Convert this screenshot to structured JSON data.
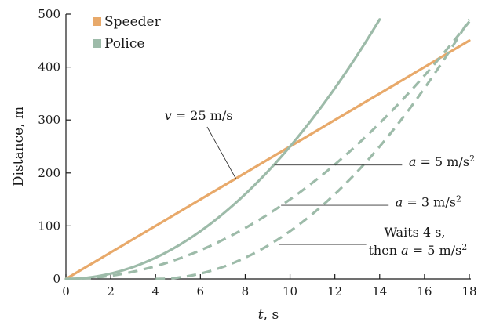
{
  "chart_data": {
    "type": "line",
    "xlabel": "t, s",
    "ylabel": "Distance, m",
    "xlim": [
      0,
      18
    ],
    "ylim": [
      0,
      500
    ],
    "x_ticks": [
      0,
      2,
      4,
      6,
      8,
      10,
      12,
      14,
      16,
      18
    ],
    "y_ticks": [
      0,
      100,
      200,
      300,
      400,
      500
    ],
    "grid": false,
    "legend": {
      "placement": "top-left"
    },
    "colors": {
      "speeder": "#e8a96a",
      "police": "#9dbba9"
    },
    "series": [
      {
        "name": "Speeder",
        "style": "solid",
        "color": "#e8a96a",
        "x": [
          0,
          18
        ],
        "y": [
          0,
          450
        ]
      },
      {
        "name": "Police",
        "style": "solid",
        "color": "#9dbba9",
        "x": [
          0,
          2,
          4,
          6,
          8,
          10,
          12,
          14
        ],
        "y": [
          0,
          10,
          40,
          90,
          160,
          250,
          360,
          490
        ]
      },
      {
        "style": "dashed",
        "color": "#9dbba9",
        "x": [
          0,
          2,
          4,
          6,
          8,
          10,
          12,
          14,
          16,
          18
        ],
        "y": [
          0,
          6,
          24,
          54,
          96,
          150,
          216,
          294,
          384,
          486
        ]
      },
      {
        "style": "dashed",
        "color": "#9dbba9",
        "x": [
          4,
          6,
          8,
          10,
          12,
          14,
          16,
          18
        ],
        "y": [
          0,
          10,
          40,
          90,
          160,
          250,
          360,
          490
        ]
      }
    ],
    "annotations": [
      {
        "parts": [
          {
            "text": "v",
            "italic": true
          },
          {
            "text": " = 25 m/s"
          }
        ],
        "text_pos": [
          4.4,
          300
        ],
        "anchor": "start",
        "leader": [
          [
            6.3,
            287
          ],
          [
            7.6,
            188
          ]
        ]
      },
      {
        "parts": [
          {
            "text": "a",
            "italic": true
          },
          {
            "text": " = 5 m/s"
          },
          {
            "text": "2",
            "sup": true
          }
        ],
        "text_pos": [
          15.3,
          213
        ],
        "anchor": "start",
        "leader": [
          [
            15.0,
            215
          ],
          [
            9.3,
            215
          ]
        ]
      },
      {
        "parts": [
          {
            "text": "a",
            "italic": true
          },
          {
            "text": " = 3 m/s"
          },
          {
            "text": "2",
            "sup": true
          }
        ],
        "text_pos": [
          14.7,
          137
        ],
        "anchor": "start",
        "leader": [
          [
            14.4,
            139
          ],
          [
            9.6,
            139
          ]
        ]
      },
      {
        "parts": [
          {
            "text": "Waits 4 s,"
          }
        ],
        "text_pos": [
          14.2,
          80
        ],
        "anchor": "start",
        "leader": null
      },
      {
        "parts": [
          {
            "text": "then "
          },
          {
            "text": "a",
            "italic": true
          },
          {
            "text": " = 5 m/s"
          },
          {
            "text": "2",
            "sup": true
          }
        ],
        "text_pos": [
          13.5,
          46
        ],
        "anchor": "start",
        "leader": [
          [
            13.4,
            65
          ],
          [
            9.5,
            65
          ]
        ]
      }
    ]
  }
}
